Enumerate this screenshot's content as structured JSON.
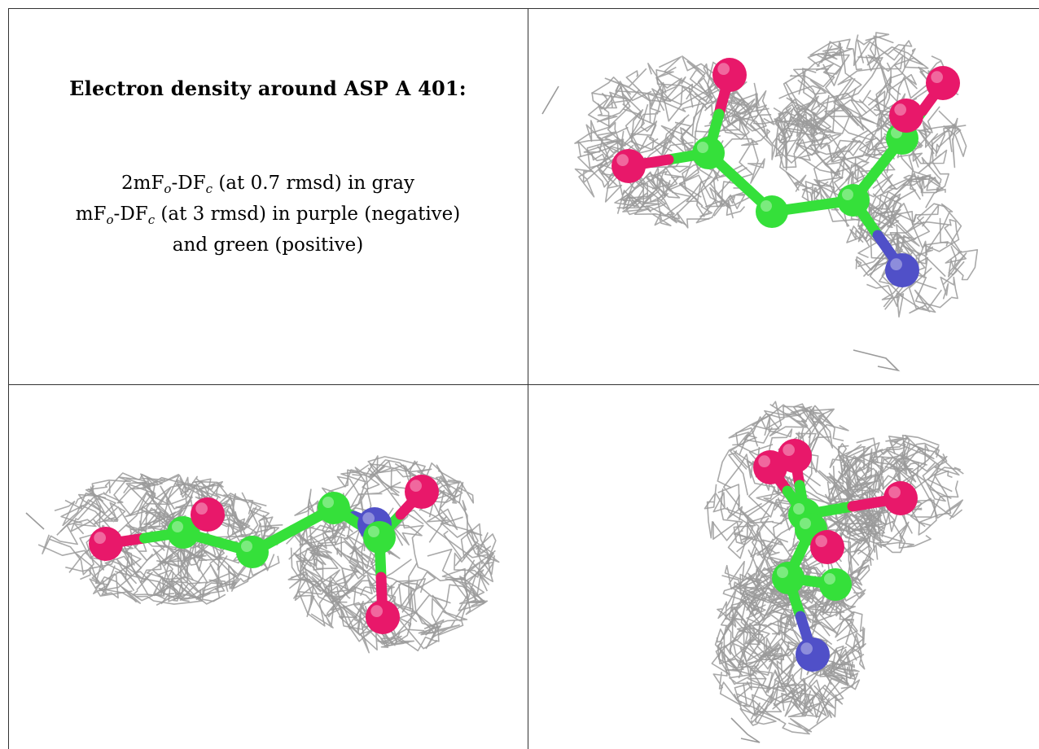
{
  "caption": {
    "title": "Electron density around ASP A 401:",
    "line1": {
      "a": "2mF",
      "a_sub": "o",
      "b": "-DF",
      "b_sub": "c",
      "rest": " (at 0.7 rmsd) in gray"
    },
    "line2": {
      "a": "mF",
      "a_sub": "o",
      "b": "-DF",
      "b_sub": "c",
      "rest": " (at 3 rmsd) in purple (negative)"
    },
    "line3": "and green (positive)"
  },
  "colors": {
    "mesh": "#9a9a9a",
    "carbon": "#35e03a",
    "oxygen": "#e8186a",
    "nitrogen": "#5050c8",
    "border": "#333333"
  },
  "views": [
    {
      "name": "view-top-right"
    },
    {
      "name": "view-bottom-left"
    },
    {
      "name": "view-bottom-right"
    }
  ]
}
